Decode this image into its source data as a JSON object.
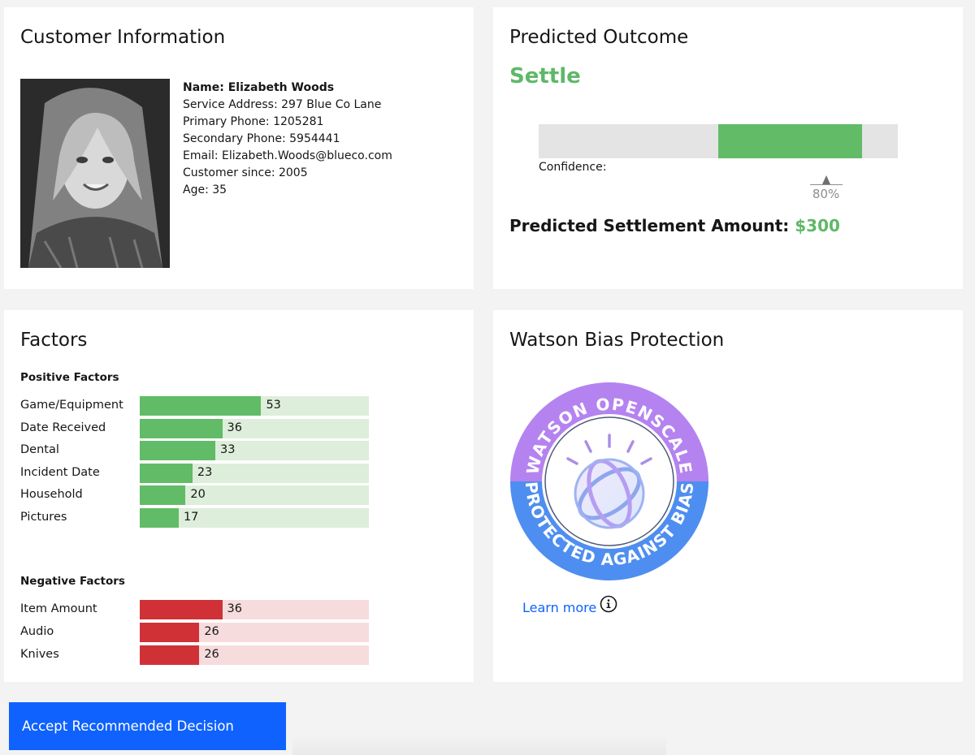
{
  "customer": {
    "title": "Customer Information",
    "name_line": "Name: Elizabeth Woods",
    "details": [
      "Service Address: 297 Blue Co Lane",
      "Primary Phone: 1205281",
      "Secondary Phone: 5954441",
      "Email: Elizabeth.Woods@blueco.com",
      "Customer since: 2005",
      "Age: 35"
    ]
  },
  "outcome": {
    "title": "Predicted Outcome",
    "value": "Settle",
    "confidence_label": "Confidence:",
    "confidence_range": [
      0.5,
      0.9
    ],
    "confidence_value": 0.8,
    "confidence_text": "80%",
    "settlement_label": "Predicted Settlement Amount:",
    "settlement_amount": "$300"
  },
  "factors": {
    "title": "Factors",
    "max_value": 100,
    "positive_label": "Positive Factors",
    "positive": [
      {
        "name": "Game/Equipment",
        "value": 53
      },
      {
        "name": "Date Received",
        "value": 36
      },
      {
        "name": "Dental",
        "value": 33
      },
      {
        "name": "Incident Date",
        "value": 23
      },
      {
        "name": "Household",
        "value": 20
      },
      {
        "name": "Pictures",
        "value": 17
      }
    ],
    "negative_label": "Negative Factors",
    "negative": [
      {
        "name": "Item Amount",
        "value": 36
      },
      {
        "name": "Audio",
        "value": 26
      },
      {
        "name": "Knives",
        "value": 26
      }
    ]
  },
  "watson": {
    "title": "Watson Bias Protection",
    "badge_top_text": "WATSON OPENSCALE",
    "badge_bottom_text": "PROTECTED AGAINST BIAS",
    "learn_more": "Learn more"
  },
  "actions": {
    "accept_label": "Accept Recommended Decision"
  },
  "colors": {
    "positive": "#62bb67",
    "negative": "#cf3137",
    "accent": "#0f62fe",
    "badge_top": "#b483f0",
    "badge_bottom": "#4e8ef0"
  },
  "icons": {
    "info": "info-icon",
    "photo": "customer-photo"
  }
}
